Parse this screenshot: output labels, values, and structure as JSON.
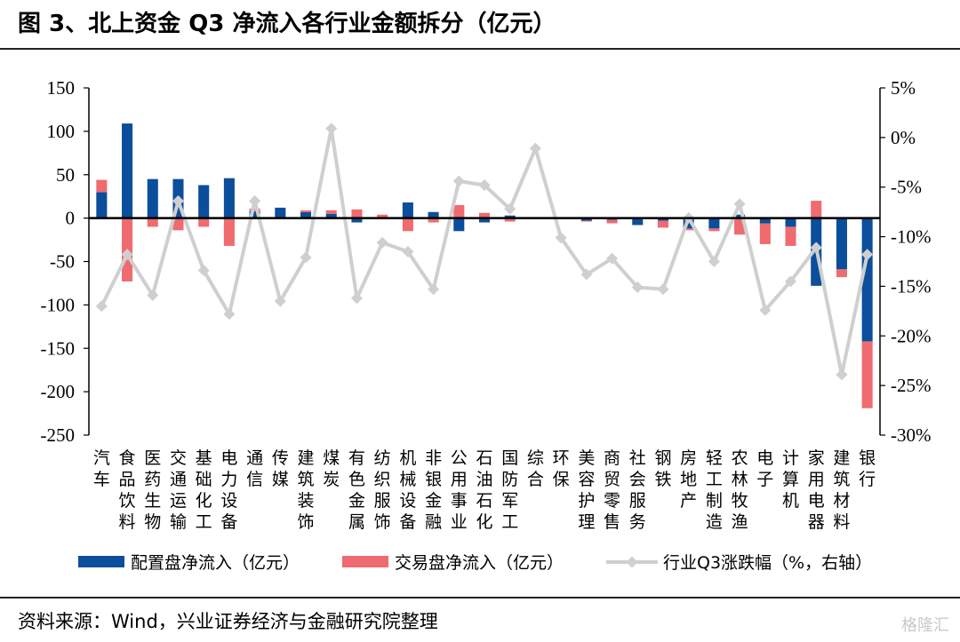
{
  "title": "图 3、北上资金 Q3 净流入各行业金额拆分（亿元）",
  "source": "资料来源：Wind，兴业证券经济与金融研究院整理",
  "watermark": "格隆汇",
  "colors": {
    "allocation": "#0b4e9b",
    "trading": "#ef6b70",
    "change": "#cfcfcf",
    "axis": "#000000"
  },
  "chart_data": {
    "type": "bar",
    "title": "",
    "categories": [
      "汽车",
      "食品饮料",
      "医药生物",
      "交通运输",
      "基础化工",
      "电力设备",
      "通信",
      "传媒",
      "建筑装饰",
      "煤炭",
      "有色金属",
      "纺织服饰",
      "机械设备",
      "非银金融",
      "公用事业",
      "石油石化",
      "国防军工",
      "综合",
      "环保",
      "美容护理",
      "商贸零售",
      "社会服务",
      "钢铁",
      "房地产",
      "轻工制造",
      "农林牧渔",
      "电子",
      "计算机",
      "家用电器",
      "建筑材料",
      "银行"
    ],
    "y_left": {
      "min": -250,
      "max": 150,
      "ticks": [
        150,
        100,
        50,
        0,
        -50,
        -100,
        -150,
        -200,
        -250
      ]
    },
    "y_right": {
      "min": -30,
      "max": 5,
      "ticks": [
        "5%",
        "0%",
        "-5%",
        "-10%",
        "-15%",
        "-20%",
        "-25%",
        "-30%"
      ],
      "tick_values": [
        5,
        0,
        -5,
        -10,
        -15,
        -20,
        -25,
        -30
      ]
    },
    "series": [
      {
        "name": "配置盘净流入（亿元）",
        "type": "bar",
        "axis": "left",
        "values": [
          30,
          109,
          45,
          45,
          38,
          46,
          8,
          12,
          7,
          5,
          -5,
          -1,
          18,
          7,
          -15,
          -5,
          3,
          0,
          0,
          -3,
          -2,
          -8,
          -3,
          -12,
          -12,
          4,
          -6,
          -10,
          -78,
          -59,
          -142
        ]
      },
      {
        "name": "交易盘净流入（亿元）",
        "type": "bar",
        "axis": "left",
        "values": [
          14,
          -73,
          -10,
          -14,
          -10,
          -32,
          3,
          0,
          2,
          4,
          10,
          4,
          -15,
          -5,
          15,
          6,
          -4,
          0,
          0,
          -1,
          -4,
          0,
          -8,
          -2,
          -3,
          -19,
          -24,
          -22,
          20,
          -9,
          -77
        ]
      },
      {
        "name": "行业Q3涨跌幅（%，右轴）",
        "type": "line",
        "axis": "right",
        "values": [
          -17.0,
          -11.8,
          -15.9,
          -6.4,
          -13.4,
          -17.8,
          -6.4,
          -16.5,
          -12.1,
          0.9,
          -16.2,
          -10.6,
          -11.5,
          -15.3,
          -4.4,
          -4.8,
          -7.2,
          -1.1,
          -10.1,
          -13.8,
          -12.2,
          -15.1,
          -15.3,
          -8.1,
          -12.5,
          -6.7,
          -17.4,
          -14.5,
          -11.1,
          -23.9,
          -11.8
        ]
      }
    ],
    "legend": "bottom"
  }
}
